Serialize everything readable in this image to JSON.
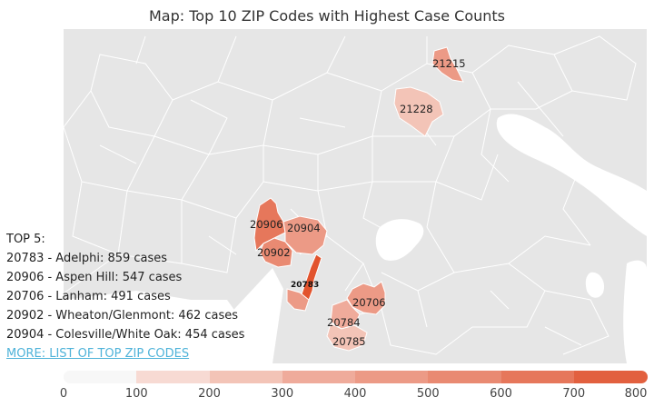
{
  "title": "Map: Top 10 ZIP Codes with Highest Case Counts",
  "top_list": {
    "heading": "TOP 5:",
    "items": [
      "20783 - Adelphi: 859 cases",
      "20906 - Aspen Hill: 547 cases",
      "20706 - Lanham: 491 cases",
      "20902 - Wheaton/Glenmont: 462 cases",
      "20904 - Colesville/White Oak: 454 cases"
    ],
    "more_link": "MORE: LIST OF TOP ZIP CODES"
  },
  "zip_labels": [
    "21215",
    "21228",
    "20906",
    "20904",
    "20902",
    "20783",
    "20706",
    "20784",
    "20785"
  ],
  "legend": {
    "ticks": [
      "0",
      "100",
      "200",
      "300",
      "400",
      "500",
      "600",
      "700",
      "800"
    ],
    "colors": [
      "#f7f7f7",
      "#f7dad3",
      "#f3c4b7",
      "#efab9b",
      "#ec9a86",
      "#e98a72",
      "#e6775b",
      "#e2603f"
    ]
  },
  "colors": {
    "land": "#e6e6e6",
    "boundary": "#ffffff",
    "water": "#ffffff",
    "highlight_dark": "#e2532d"
  }
}
